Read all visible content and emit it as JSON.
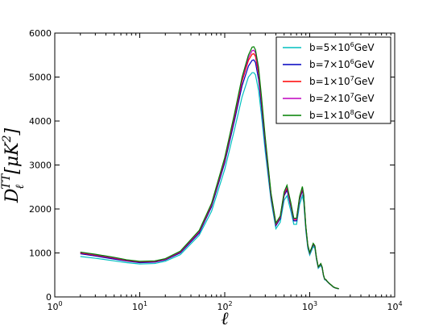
{
  "chart_data": {
    "type": "line",
    "title": "",
    "xlabel": "ℓ",
    "ylabel": {
      "main": "D",
      "sub": "ℓ",
      "sup": "TT",
      "unit": "[μK",
      "unit_sup": "2",
      "close": "]"
    },
    "x_scale": "log",
    "xlim": [
      1,
      10000
    ],
    "ylim": [
      0,
      6000
    ],
    "x_ticks": [
      {
        "value": 1,
        "base": "10",
        "exp": "0"
      },
      {
        "value": 10,
        "base": "10",
        "exp": "1"
      },
      {
        "value": 100,
        "base": "10",
        "exp": "2"
      },
      {
        "value": 1000,
        "base": "10",
        "exp": "3"
      },
      {
        "value": 10000,
        "base": "10",
        "exp": "4"
      }
    ],
    "y_ticks": [
      0,
      1000,
      2000,
      3000,
      4000,
      5000,
      6000
    ],
    "y_tick_labels": [
      "0",
      "1000",
      "2000",
      "3000",
      "4000",
      "5000",
      "6000"
    ],
    "legend_position": "top-right",
    "x": [
      2,
      3,
      5,
      7,
      10,
      15,
      20,
      30,
      50,
      70,
      100,
      130,
      160,
      190,
      210,
      220,
      230,
      250,
      270,
      300,
      350,
      400,
      450,
      500,
      540,
      600,
      650,
      700,
      760,
      820,
      850,
      900,
      950,
      1000,
      1050,
      1100,
      1150,
      1200,
      1260,
      1300,
      1350,
      1400,
      1450,
      1500,
      1550,
      1600,
      1700,
      1800,
      1900,
      2000,
      2200
    ],
    "series": [
      {
        "name": "b=5×10⁶GeV",
        "label_pre": "b=5",
        "label_times": "×10",
        "label_exp": "6",
        "label_unit": "GeV",
        "color": "#00bfbf",
        "values": [
          920,
          880,
          820,
          780,
          750,
          760,
          810,
          960,
          1400,
          1950,
          2900,
          3800,
          4550,
          5000,
          5100,
          5100,
          5050,
          4700,
          4150,
          3300,
          2200,
          1550,
          1700,
          2200,
          2300,
          1950,
          1650,
          1650,
          2100,
          2300,
          2150,
          1500,
          1100,
          950,
          1050,
          1150,
          1100,
          850,
          650,
          680,
          720,
          650,
          480,
          390,
          380,
          350,
          300,
          260,
          220,
          200,
          180
        ]
      },
      {
        "name": "b=7×10⁶GeV",
        "label_pre": "b=7",
        "label_times": "×10",
        "label_exp": "6",
        "label_unit": "GeV",
        "color": "#0000bf",
        "values": [
          980,
          930,
          860,
          815,
          780,
          790,
          840,
          1000,
          1450,
          2050,
          3050,
          4000,
          4800,
          5250,
          5380,
          5390,
          5330,
          4950,
          4350,
          3450,
          2280,
          1620,
          1780,
          2300,
          2430,
          2050,
          1730,
          1730,
          2200,
          2420,
          2260,
          1570,
          1150,
          990,
          1090,
          1190,
          1140,
          880,
          675,
          705,
          745,
          670,
          495,
          400,
          390,
          355,
          305,
          265,
          225,
          205,
          185
        ]
      },
      {
        "name": "b=1×10⁷GeV",
        "label_pre": "b=1",
        "label_times": "×10",
        "label_exp": "7",
        "label_unit": "GeV",
        "color": "#ff0000",
        "values": [
          1000,
          950,
          880,
          830,
          795,
          805,
          855,
          1020,
          1480,
          2090,
          3110,
          4080,
          4900,
          5380,
          5520,
          5530,
          5470,
          5080,
          4460,
          3530,
          2320,
          1650,
          1810,
          2340,
          2480,
          2090,
          1760,
          1760,
          2240,
          2460,
          2290,
          1590,
          1165,
          1000,
          1100,
          1205,
          1155,
          890,
          680,
          712,
          752,
          677,
          500,
          403,
          393,
          358,
          307,
          266,
          226,
          206,
          186
        ]
      },
      {
        "name": "b=2×10⁷GeV",
        "label_pre": "b=2",
        "label_times": "×10",
        "label_exp": "7",
        "label_unit": "GeV",
        "color": "#bf00bf",
        "values": [
          1010,
          960,
          890,
          838,
          802,
          812,
          862,
          1030,
          1495,
          2110,
          3140,
          4120,
          4950,
          5440,
          5600,
          5610,
          5550,
          5150,
          4520,
          3575,
          2345,
          1665,
          1825,
          2365,
          2510,
          2115,
          1775,
          1775,
          2265,
          2485,
          2310,
          1600,
          1172,
          1006,
          1106,
          1212,
          1160,
          894,
          683,
          715,
          756,
          680,
          502,
          405,
          395,
          359,
          308,
          267,
          227,
          207,
          187
        ]
      },
      {
        "name": "b=1×10⁸GeV",
        "label_pre": "b=1",
        "label_times": "×10",
        "label_exp": "8",
        "label_unit": "GeV",
        "color": "#008000",
        "values": [
          1020,
          970,
          900,
          845,
          810,
          820,
          870,
          1040,
          1510,
          2130,
          3170,
          4160,
          5000,
          5500,
          5680,
          5690,
          5620,
          5220,
          4580,
          3620,
          2370,
          1680,
          1840,
          2390,
          2540,
          2140,
          1790,
          1790,
          2290,
          2510,
          2330,
          1610,
          1180,
          1012,
          1112,
          1220,
          1165,
          898,
          686,
          718,
          760,
          683,
          504,
          407,
          397,
          360,
          309,
          268,
          228,
          208,
          188
        ]
      }
    ]
  }
}
